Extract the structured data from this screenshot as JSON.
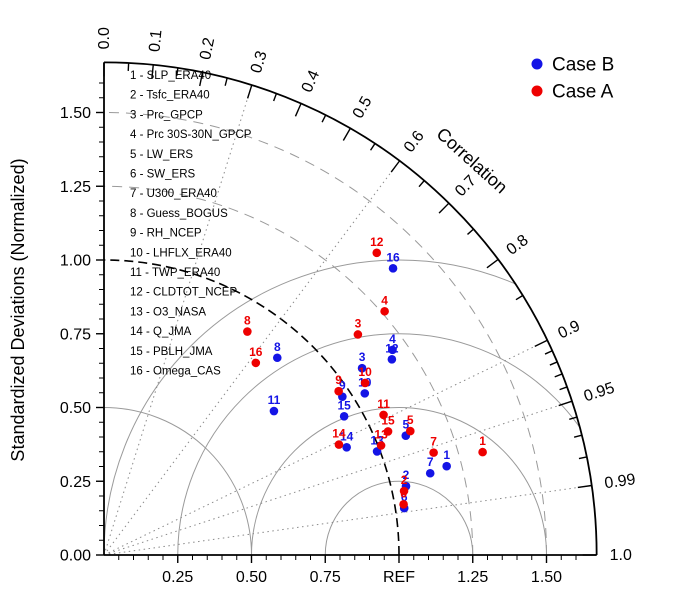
{
  "legend": {
    "items": [
      {
        "label": "Case B",
        "color": "#1414e6"
      },
      {
        "label": "Case A",
        "color": "#ee0000"
      }
    ]
  },
  "variables": [
    {
      "id": 1,
      "label": "SLP_ERA40"
    },
    {
      "id": 2,
      "label": "Tsfc_ERA40"
    },
    {
      "id": 3,
      "label": "Prc_GPCP"
    },
    {
      "id": 4,
      "label": "Prc 30S-30N_GPCP"
    },
    {
      "id": 5,
      "label": "LW_ERS"
    },
    {
      "id": 6,
      "label": "SW_ERS"
    },
    {
      "id": 7,
      "label": "U300_ERA40"
    },
    {
      "id": 8,
      "label": "Guess_BOGUS"
    },
    {
      "id": 9,
      "label": "RH_NCEP"
    },
    {
      "id": 10,
      "label": "LHFLX_ERA40"
    },
    {
      "id": 11,
      "label": "TWP_ERA40"
    },
    {
      "id": 12,
      "label": "CLDTOT_NCEP"
    },
    {
      "id": 13,
      "label": "O3_NASA"
    },
    {
      "id": 14,
      "label": "Q_JMA"
    },
    {
      "id": 15,
      "label": "PBLH_JMA"
    },
    {
      "id": 16,
      "label": "Omega_CAS"
    }
  ],
  "chart_data": {
    "type": "scatter",
    "subtype": "taylor-diagram",
    "title": "",
    "ylabel": "Standardized Deviations (Normalized)",
    "correlation_label": "Correlation",
    "ref_label": "REF",
    "axis_max": 1.65,
    "x_ticks": [
      {
        "v": 0.25,
        "label": "0.25"
      },
      {
        "v": 0.5,
        "label": "0.50"
      },
      {
        "v": 0.75,
        "label": "0.75"
      },
      {
        "v": 1.0,
        "label": "REF"
      },
      {
        "v": 1.25,
        "label": "1.25"
      },
      {
        "v": 1.5,
        "label": "1.50"
      }
    ],
    "y_ticks": [
      {
        "v": 0.0,
        "label": "0.00"
      },
      {
        "v": 0.25,
        "label": "0.25"
      },
      {
        "v": 0.5,
        "label": "0.50"
      },
      {
        "v": 0.75,
        "label": "0.75"
      },
      {
        "v": 1.0,
        "label": "1.00"
      },
      {
        "v": 1.25,
        "label": "1.25"
      },
      {
        "v": 1.5,
        "label": "1.50"
      }
    ],
    "correlation_ticks": [
      {
        "v": 0.0,
        "label": "0.0"
      },
      {
        "v": 0.1,
        "label": "0.1"
      },
      {
        "v": 0.2,
        "label": "0.2"
      },
      {
        "v": 0.3,
        "label": "0.3"
      },
      {
        "v": 0.4,
        "label": "0.4"
      },
      {
        "v": 0.5,
        "label": "0.5"
      },
      {
        "v": 0.6,
        "label": "0.6"
      },
      {
        "v": 0.7,
        "label": "0.7"
      },
      {
        "v": 0.8,
        "label": "0.8"
      },
      {
        "v": 0.9,
        "label": "0.9"
      },
      {
        "v": 0.95,
        "label": "0.95"
      },
      {
        "v": 0.99,
        "label": "0.99"
      },
      {
        "v": 1.0,
        "label": "1.0"
      }
    ],
    "correlation_minor_ticks": [
      0.05,
      0.15,
      0.25,
      0.35,
      0.45,
      0.55,
      0.65,
      0.75,
      0.85,
      0.91,
      0.92,
      0.93,
      0.94,
      0.96,
      0.97,
      0.98
    ],
    "correlation_rays": [
      0.3,
      0.6,
      0.9,
      0.95,
      0.99
    ],
    "std_arcs_solid": [
      0.5
    ],
    "std_arc_ref": 1.0,
    "std_arcs_dashed": [
      1.25,
      1.5
    ],
    "rms_arcs_centered_on_ref": [
      0.25,
      0.5,
      0.75,
      1.0
    ],
    "series": [
      {
        "name": "Case B",
        "color": "#1414e6",
        "points": [
          {
            "id": 1,
            "std": 1.2,
            "corr": 0.968
          },
          {
            "id": 2,
            "std": 1.05,
            "corr": 0.975
          },
          {
            "id": 3,
            "std": 1.08,
            "corr": 0.81
          },
          {
            "id": 4,
            "std": 1.2,
            "corr": 0.815
          },
          {
            "id": 5,
            "std": 1.1,
            "corr": 0.93
          },
          {
            "id": 6,
            "std": 1.03,
            "corr": 0.988
          },
          {
            "id": 7,
            "std": 1.14,
            "corr": 0.97
          },
          {
            "id": 8,
            "std": 0.89,
            "corr": 0.66
          },
          {
            "id": 9,
            "std": 0.97,
            "corr": 0.833
          },
          {
            "id": 10,
            "std": 1.04,
            "corr": 0.85
          },
          {
            "id": 11,
            "std": 0.755,
            "corr": 0.763
          },
          {
            "id": 12,
            "std": 1.18,
            "corr": 0.827
          },
          {
            "id": 13,
            "std": 0.99,
            "corr": 0.935
          },
          {
            "id": 14,
            "std": 0.9,
            "corr": 0.914
          },
          {
            "id": 15,
            "std": 0.94,
            "corr": 0.866
          },
          {
            "id": 16,
            "std": 1.38,
            "corr": 0.71
          }
        ]
      },
      {
        "name": "Case A",
        "color": "#ee0000",
        "points": [
          {
            "id": 1,
            "std": 1.33,
            "corr": 0.965
          },
          {
            "id": 2,
            "std": 1.04,
            "corr": 0.978
          },
          {
            "id": 3,
            "std": 1.14,
            "corr": 0.755
          },
          {
            "id": 4,
            "std": 1.26,
            "corr": 0.755
          },
          {
            "id": 5,
            "std": 1.12,
            "corr": 0.927
          },
          {
            "id": 6,
            "std": 1.03,
            "corr": 0.986
          },
          {
            "id": 7,
            "std": 1.17,
            "corr": 0.955
          },
          {
            "id": 8,
            "std": 0.9,
            "corr": 0.54
          },
          {
            "id": 9,
            "std": 0.97,
            "corr": 0.82
          },
          {
            "id": 10,
            "std": 1.06,
            "corr": 0.835
          },
          {
            "id": 11,
            "std": 1.06,
            "corr": 0.894
          },
          {
            "id": 12,
            "std": 1.38,
            "corr": 0.67
          },
          {
            "id": 13,
            "std": 1.01,
            "corr": 0.93
          },
          {
            "id": 14,
            "std": 0.88,
            "corr": 0.905
          },
          {
            "id": 15,
            "std": 1.05,
            "corr": 0.917
          },
          {
            "id": 16,
            "std": 0.83,
            "corr": 0.62
          }
        ]
      }
    ]
  }
}
